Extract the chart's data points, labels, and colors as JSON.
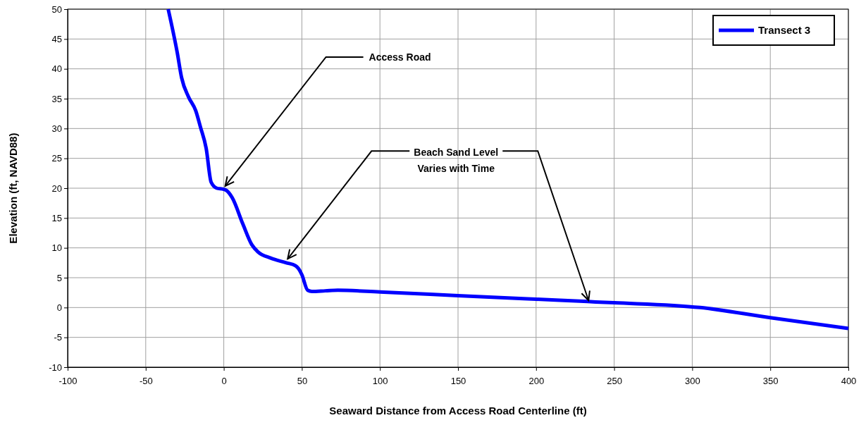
{
  "chart_data": {
    "type": "line",
    "xlabel": "Seaward Distance from Access Road Centerline (ft)",
    "ylabel": "Elevation (ft, NAVD88)",
    "xlim": [
      -100,
      400
    ],
    "xticks": [
      -100,
      -50,
      0,
      50,
      100,
      150,
      200,
      250,
      300,
      350,
      400
    ],
    "ylim": [
      -10,
      50
    ],
    "yticks": [
      -10,
      -5,
      0,
      5,
      10,
      15,
      20,
      25,
      30,
      35,
      40,
      45,
      50
    ],
    "grid": true,
    "legend": "top right",
    "marker": "none",
    "line_style": "solid",
    "series": [
      {
        "name": "Transect 3",
        "color": "#0000ff",
        "x": [
          -35.6,
          -29.8,
          -27,
          -22.6,
          -18,
          -14.9,
          -11.3,
          -8.1,
          -4.5,
          0,
          1.8,
          5.4,
          12.2,
          18,
          22,
          30,
          40,
          46,
          47.9,
          50,
          53.7,
          56.4,
          65,
          73,
          100,
          150,
          200,
          233,
          250,
          305,
          350,
          400
        ],
        "values": [
          50,
          42.7,
          38.5,
          35.3,
          33,
          30.2,
          26.7,
          21,
          20,
          19.8,
          19.6,
          18.4,
          14,
          10.5,
          9.3,
          8.3,
          7.5,
          7,
          6.5,
          5.5,
          2.9,
          2.7,
          2.8,
          2.9,
          2.6,
          2,
          1.4,
          1,
          0.8,
          0,
          -1.7,
          -3.5
        ]
      }
    ],
    "annotations": [
      {
        "text": "Access Road",
        "x": 0,
        "y": 20
      },
      {
        "text": "Beach Sand Level\nVaries with Time",
        "x": 40,
        "y": 7.8
      }
    ]
  }
}
